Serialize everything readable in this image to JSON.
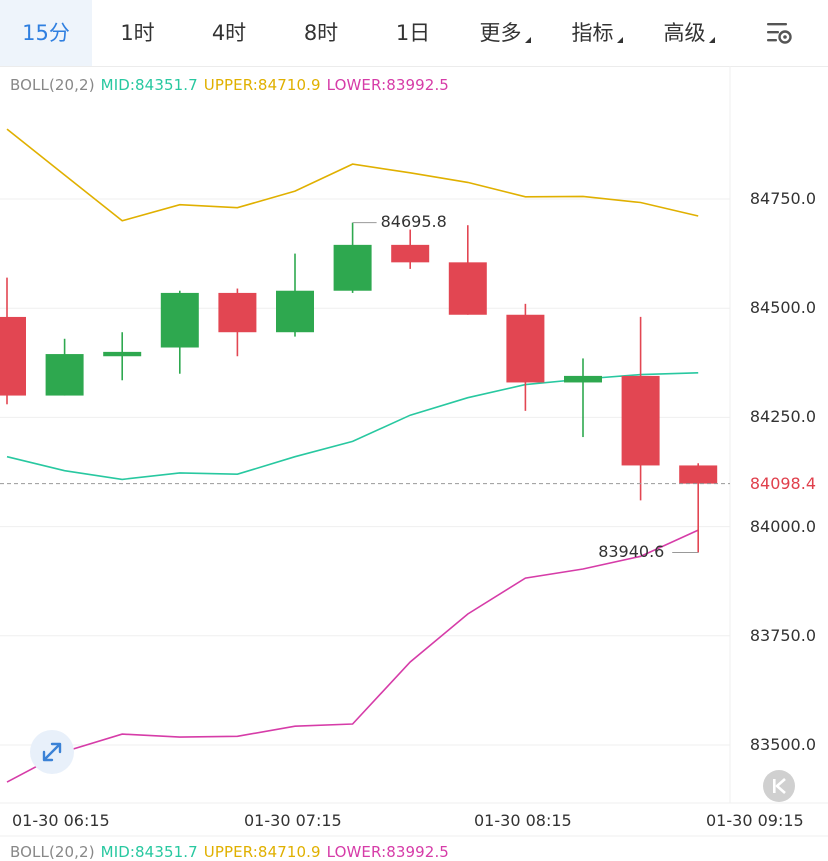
{
  "timeframe_tabs": [
    {
      "label": "15分",
      "active": true,
      "dropdown": false
    },
    {
      "label": "1时",
      "active": false,
      "dropdown": false
    },
    {
      "label": "4时",
      "active": false,
      "dropdown": false
    },
    {
      "label": "8时",
      "active": false,
      "dropdown": false
    },
    {
      "label": "1日",
      "active": false,
      "dropdown": false
    },
    {
      "label": "更多",
      "active": false,
      "dropdown": true
    },
    {
      "label": "指标",
      "active": false,
      "dropdown": true
    },
    {
      "label": "高级",
      "active": false,
      "dropdown": true
    }
  ],
  "settings_icon": "chart-settings-icon",
  "boll": {
    "name": "BOLL(20,2)",
    "mid": "MID:84351.7",
    "upper": "UPPER:84710.9",
    "lower": "LOWER:83992.5"
  },
  "boll_bottom": {
    "name": "BOLL(20,2)",
    "mid": "MID:84351.7",
    "upper": "UPPER:84710.9",
    "lower": "LOWER:83992.5"
  },
  "colors": {
    "up": "#2ea84f",
    "down": "#e24652",
    "mid": "#28c8a0",
    "upper": "#e0b000",
    "lower": "#d63ca8",
    "grid": "#efefef",
    "active_tab": "#2f7fe0"
  },
  "y_axis": {
    "ticks": [
      {
        "value": 84750,
        "label": "84750.0"
      },
      {
        "value": 84500,
        "label": "84500.0"
      },
      {
        "value": 84250,
        "label": "84250.0"
      },
      {
        "value": 84000,
        "label": "84000.0"
      },
      {
        "value": 83750,
        "label": "83750.0"
      },
      {
        "value": 83500,
        "label": "83500.0"
      }
    ],
    "current_price": 84098.4,
    "current_label": "84098.4"
  },
  "x_axis": {
    "labels": [
      {
        "label": "01-30 06:15",
        "index": 0
      },
      {
        "label": "01-30 07:15",
        "index": 4
      },
      {
        "label": "01-30 08:15",
        "index": 8
      },
      {
        "label": "01-30 09:15",
        "index": 12
      }
    ]
  },
  "annotations": {
    "high": {
      "label": "84695.8",
      "value": 84695.8,
      "index": 6
    },
    "low": {
      "label": "83940.6",
      "value": 83940.6,
      "index": 12
    }
  },
  "chart_data": {
    "type": "candlestick",
    "interval": "15分",
    "candles": [
      {
        "open": 84480,
        "high": 84570,
        "low": 84280,
        "close": 84300
      },
      {
        "open": 84300,
        "high": 84430,
        "low": 84300,
        "close": 84395
      },
      {
        "open": 84390,
        "high": 84445,
        "low": 84335,
        "close": 84400
      },
      {
        "open": 84410,
        "high": 84540,
        "low": 84350,
        "close": 84535
      },
      {
        "open": 84535,
        "high": 84545,
        "low": 84390,
        "close": 84445
      },
      {
        "open": 84445,
        "high": 84625,
        "low": 84435,
        "close": 84540
      },
      {
        "open": 84540,
        "high": 84695.8,
        "low": 84535,
        "close": 84645
      },
      {
        "open": 84645,
        "high": 84680,
        "low": 84590,
        "close": 84605
      },
      {
        "open": 84605,
        "high": 84690,
        "low": 84485,
        "close": 84485
      },
      {
        "open": 84485,
        "high": 84510,
        "low": 84265,
        "close": 84330
      },
      {
        "open": 84330,
        "high": 84385,
        "low": 84205,
        "close": 84345
      },
      {
        "open": 84345,
        "high": 84480,
        "low": 84060,
        "close": 84140
      },
      {
        "open": 84140,
        "high": 84145,
        "low": 83940.6,
        "close": 84098.4
      }
    ],
    "boll_upper": [
      84910,
      84805,
      84700,
      84737,
      84730,
      84768,
      84830,
      84810,
      84788,
      84755,
      84756,
      84742,
      84711
    ],
    "boll_mid": [
      84160,
      84128,
      84108,
      84123,
      84120,
      84160,
      84195,
      84255,
      84295,
      84325,
      84338,
      84348,
      84352
    ],
    "boll_lower": [
      83415,
      83485,
      83525,
      83518,
      83520,
      83543,
      83548,
      83690,
      83800,
      83882,
      83903,
      83932,
      83992
    ]
  }
}
